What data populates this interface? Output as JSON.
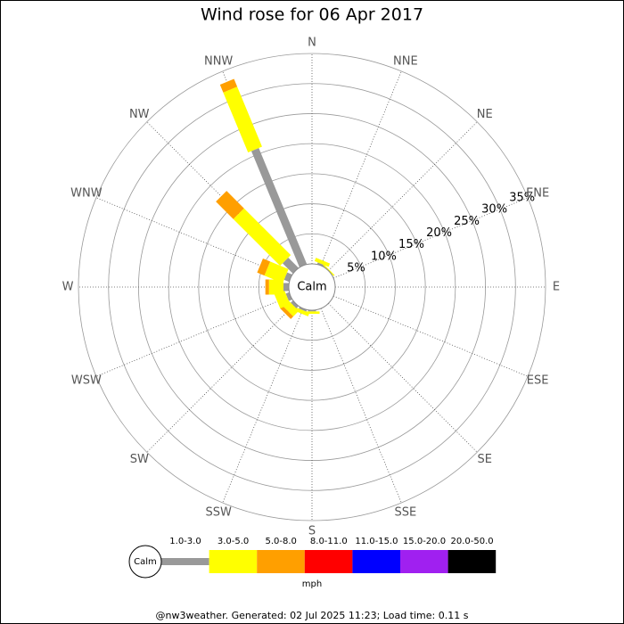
{
  "chart_data": {
    "type": "windrose",
    "title": "Wind rose for 06 Apr 2017",
    "categories": [
      "N",
      "NNE",
      "NE",
      "ENE",
      "E",
      "ESE",
      "SE",
      "SSE",
      "S",
      "SSW",
      "SW",
      "WSW",
      "W",
      "WNW",
      "NW",
      "NNW"
    ],
    "series": [
      {
        "name": "1.0-3.0",
        "color": "#999999",
        "values": [
          0,
          0.3,
          0,
          0,
          0,
          0,
          0,
          0,
          0.2,
          0.3,
          0.5,
          0.6,
          0.9,
          0.9,
          2.4,
          20.9
        ]
      },
      {
        "name": "3.0-5.0",
        "color": "#ffff00",
        "values": [
          0,
          0.6,
          0.2,
          0,
          0,
          0,
          0,
          0,
          0.4,
          0.6,
          1.3,
          1.8,
          2.4,
          3.3,
          11.0,
          10.8
        ]
      },
      {
        "name": "5.0-8.0",
        "color": "#ff9f00",
        "values": [
          0,
          0,
          0,
          0,
          0,
          0,
          0,
          0,
          0,
          0,
          0.6,
          0,
          0.6,
          1.3,
          4.1,
          1.4
        ]
      },
      {
        "name": "8.0-11.0",
        "color": "#ff0000",
        "values": [
          0,
          0,
          0,
          0,
          0,
          0,
          0,
          0,
          0,
          0,
          0,
          0,
          0,
          0,
          0,
          0
        ]
      },
      {
        "name": "11.0-15.0",
        "color": "#0000ff",
        "values": [
          0,
          0,
          0,
          0,
          0,
          0,
          0,
          0,
          0,
          0,
          0,
          0,
          0,
          0,
          0,
          0
        ]
      },
      {
        "name": "15.0-20.0",
        "color": "#a020f0",
        "values": [
          0,
          0,
          0,
          0,
          0,
          0,
          0,
          0,
          0,
          0,
          0,
          0,
          0,
          0,
          0,
          0
        ]
      },
      {
        "name": "20.0-50.0",
        "color": "#000000",
        "values": [
          0,
          0,
          0,
          0,
          0,
          0,
          0,
          0,
          0,
          0,
          0,
          0,
          0,
          0,
          0,
          0
        ]
      }
    ],
    "rlim": [
      0,
      35
    ],
    "rticks": [
      {
        "value": 5,
        "label": "5%"
      },
      {
        "value": 10,
        "label": "10%"
      },
      {
        "value": 15,
        "label": "15%"
      },
      {
        "value": 20,
        "label": "20%"
      },
      {
        "value": 25,
        "label": "25%"
      },
      {
        "value": 30,
        "label": "30%"
      },
      {
        "value": 35,
        "label": "35%"
      }
    ],
    "calm_label": "Calm",
    "unit": "mph",
    "footer": "@nw3weather. Generated: 02 Jul 2025 11:23; Load time: 0.11 s"
  }
}
